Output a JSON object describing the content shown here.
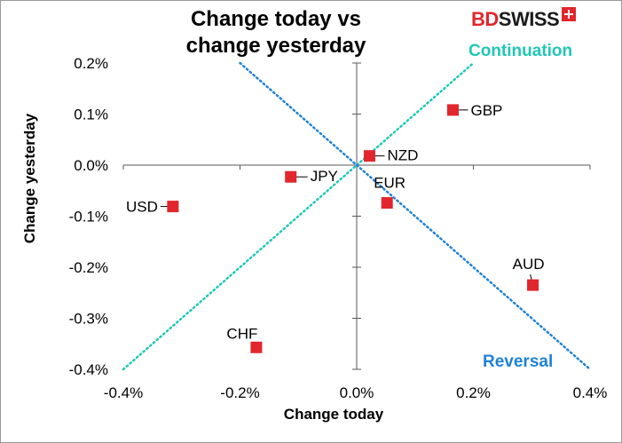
{
  "brand": {
    "bd": "BD",
    "swiss": "SWISS"
  },
  "colors": {
    "marker": "#e1262d",
    "continuation": "#21c7b5",
    "reversal": "#1f82d6",
    "axis": "#595959"
  },
  "chart_data": {
    "type": "scatter",
    "title": "Change today vs change yesterday",
    "title_lines": [
      "Change today vs",
      "change yesterday"
    ],
    "xlabel": "Change today",
    "ylabel": "Change yesterday",
    "xlim": [
      -0.4,
      0.4
    ],
    "ylim": [
      -0.4,
      0.2
    ],
    "x_ticks": [
      -0.4,
      -0.2,
      0.0,
      0.2,
      0.4
    ],
    "y_ticks": [
      0.2,
      0.1,
      0.0,
      -0.1,
      -0.2,
      -0.3,
      -0.4
    ],
    "x_tick_labels": [
      "-0.4%",
      "-0.2%",
      "0.0%",
      "0.2%",
      "0.4%"
    ],
    "y_tick_labels": [
      "0.2%",
      "0.1%",
      "0.0%",
      "-0.1%",
      "-0.2%",
      "-0.3%",
      "-0.4%"
    ],
    "unit": "%",
    "grid": false,
    "points": [
      {
        "label": "GBP",
        "x": 0.165,
        "y": 0.108
      },
      {
        "label": "NZD",
        "x": 0.022,
        "y": 0.018
      },
      {
        "label": "JPY",
        "x": -0.113,
        "y": -0.023
      },
      {
        "label": "EUR",
        "x": 0.052,
        "y": -0.074
      },
      {
        "label": "USD",
        "x": -0.315,
        "y": -0.081
      },
      {
        "label": "AUD",
        "x": 0.302,
        "y": -0.235
      },
      {
        "label": "CHF",
        "x": -0.172,
        "y": -0.357
      }
    ],
    "reference_lines": [
      {
        "name": "Continuation",
        "from": [
          -0.4,
          -0.4
        ],
        "to": [
          0.2,
          0.2
        ],
        "style": "dotted"
      },
      {
        "name": "Reversal",
        "from": [
          -0.2,
          0.2
        ],
        "to": [
          0.4,
          -0.4
        ],
        "style": "dotted"
      }
    ]
  }
}
